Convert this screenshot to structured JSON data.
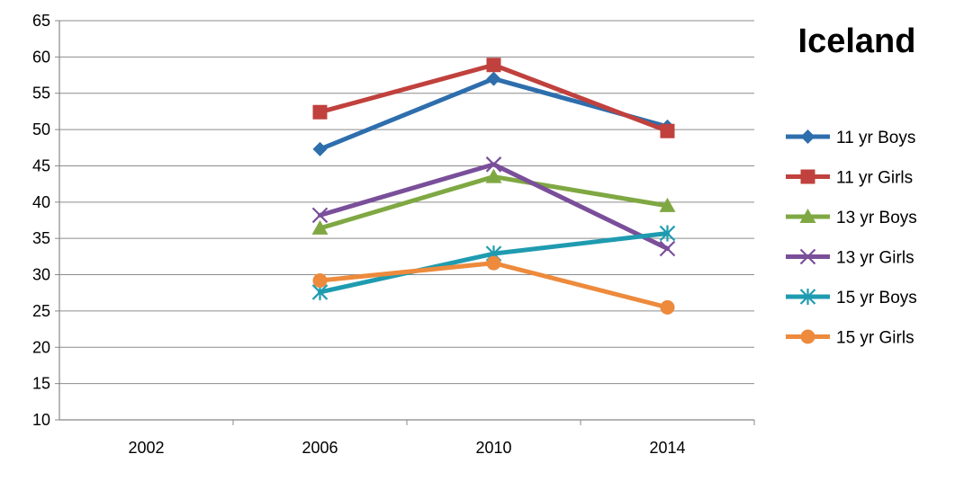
{
  "chart_data": {
    "type": "line",
    "title": "Iceland",
    "xlabel": "",
    "ylabel": "",
    "categories": [
      "2002",
      "2006",
      "2010",
      "2014"
    ],
    "ylim": [
      10,
      65
    ],
    "yticks": [
      10,
      15,
      20,
      25,
      30,
      35,
      40,
      45,
      50,
      55,
      60,
      65
    ],
    "grid": true,
    "legend_position": "right",
    "series": [
      {
        "name": "11 yr Boys",
        "color": "#2e6ead",
        "marker": "diamond",
        "values": [
          null,
          47.3,
          57.0,
          50.4
        ]
      },
      {
        "name": "11 yr Girls",
        "color": "#c0413d",
        "marker": "square",
        "values": [
          null,
          52.4,
          58.9,
          49.8
        ]
      },
      {
        "name": "13 yr Boys",
        "color": "#7fa843",
        "marker": "triangle",
        "values": [
          null,
          36.4,
          43.5,
          39.5
        ]
      },
      {
        "name": "13 yr Girls",
        "color": "#7a4f9a",
        "marker": "x",
        "values": [
          null,
          38.2,
          45.2,
          33.6
        ]
      },
      {
        "name": "15 yr Boys",
        "color": "#1f9bb0",
        "marker": "star",
        "values": [
          null,
          27.6,
          32.9,
          35.7
        ]
      },
      {
        "name": "15 yr Girls",
        "color": "#ed8a3c",
        "marker": "circle",
        "values": [
          null,
          29.2,
          31.6,
          25.5
        ]
      }
    ]
  }
}
